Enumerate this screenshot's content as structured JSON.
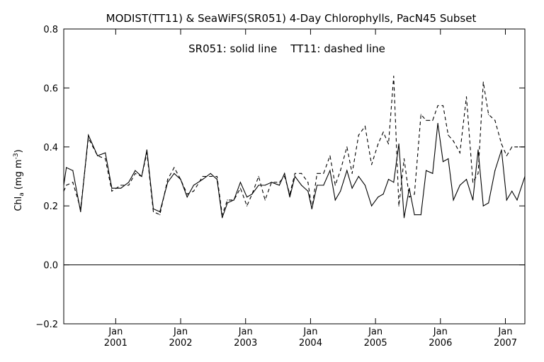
{
  "chart_data": {
    "type": "line",
    "title": "MODIST(TT11) & SeaWiFS(SR051) 4-Day Chlorophylls, PacN45 Subset",
    "annotation": "SR051: solid line    TT11: dashed line",
    "ylabel": "Chl",
    "ylabel_sub": "a",
    "ylabel_units": "(mg m",
    "ylabel_sup": "-3",
    "ylabel_close": ")",
    "ylim": [
      -0.2,
      0.8
    ],
    "xlim": [
      2000.2,
      2007.3
    ],
    "yticks": [
      -0.2,
      0.0,
      0.2,
      0.4,
      0.6,
      0.8
    ],
    "ytick_labels": [
      "−0.2",
      "0.0",
      "0.2",
      "0.4",
      "0.6",
      "0.8"
    ],
    "xticks": [
      2001.0,
      2002.0,
      2003.0,
      2004.0,
      2005.0,
      2006.0,
      2007.0
    ],
    "xtick_month_labels": [
      "Jan",
      "Jan",
      "Jan",
      "Jan",
      "Jan",
      "Jan",
      "Jan"
    ],
    "xtick_year_labels": [
      "2001",
      "2002",
      "2003",
      "2004",
      "2005",
      "2006",
      "2007"
    ],
    "grid": false,
    "reference_line": 0.0,
    "series": [
      {
        "name": "SR051",
        "style": "solid",
        "color": "#000000",
        "x": [
          2000.2,
          2000.24,
          2000.34,
          2000.46,
          2000.58,
          2000.72,
          2000.84,
          2000.94,
          2001.08,
          2001.2,
          2001.3,
          2001.4,
          2001.48,
          2001.58,
          2001.68,
          2001.8,
          2001.9,
          2002.0,
          2002.1,
          2002.2,
          2002.34,
          2002.46,
          2002.56,
          2002.64,
          2002.72,
          2002.82,
          2002.92,
          2003.02,
          2003.1,
          2003.2,
          2003.3,
          2003.4,
          2003.52,
          2003.6,
          2003.68,
          2003.76,
          2003.86,
          2003.96,
          2004.02,
          2004.1,
          2004.2,
          2004.3,
          2004.38,
          2004.46,
          2004.56,
          2004.64,
          2004.74,
          2004.84,
          2004.94,
          2005.04,
          2005.12,
          2005.2,
          2005.28,
          2005.36,
          2005.44,
          2005.52,
          2005.6,
          2005.7,
          2005.78,
          2005.88,
          2005.96,
          2006.04,
          2006.12,
          2006.2,
          2006.3,
          2006.4,
          2006.5,
          2006.58,
          2006.66,
          2006.74,
          2006.84,
          2006.94,
          2007.02,
          2007.1,
          2007.18,
          2007.3
        ],
        "y": [
          0.27,
          0.33,
          0.32,
          0.18,
          0.44,
          0.37,
          0.38,
          0.26,
          0.26,
          0.28,
          0.32,
          0.3,
          0.39,
          0.19,
          0.18,
          0.28,
          0.31,
          0.29,
          0.23,
          0.27,
          0.29,
          0.31,
          0.29,
          0.16,
          0.21,
          0.22,
          0.28,
          0.23,
          0.24,
          0.27,
          0.27,
          0.28,
          0.27,
          0.31,
          0.23,
          0.3,
          0.27,
          0.25,
          0.19,
          0.27,
          0.27,
          0.32,
          0.22,
          0.25,
          0.32,
          0.26,
          0.3,
          0.27,
          0.2,
          0.23,
          0.24,
          0.29,
          0.28,
          0.41,
          0.16,
          0.26,
          0.17,
          0.17,
          0.32,
          0.31,
          0.48,
          0.35,
          0.36,
          0.22,
          0.27,
          0.29,
          0.22,
          0.39,
          0.2,
          0.21,
          0.32,
          0.39,
          0.22,
          0.25,
          0.22,
          0.3
        ]
      },
      {
        "name": "TT11",
        "style": "dashed",
        "color": "#000000",
        "x": [
          2000.2,
          2000.24,
          2000.34,
          2000.46,
          2000.58,
          2000.72,
          2000.84,
          2000.94,
          2001.08,
          2001.2,
          2001.3,
          2001.4,
          2001.48,
          2001.58,
          2001.68,
          2001.8,
          2001.9,
          2002.0,
          2002.1,
          2002.2,
          2002.34,
          2002.46,
          2002.56,
          2002.64,
          2002.72,
          2002.82,
          2002.92,
          2003.02,
          2003.1,
          2003.2,
          2003.3,
          2003.4,
          2003.52,
          2003.6,
          2003.68,
          2003.76,
          2003.86,
          2003.96,
          2004.02,
          2004.1,
          2004.2,
          2004.3,
          2004.38,
          2004.46,
          2004.56,
          2004.64,
          2004.74,
          2004.84,
          2004.94,
          2005.04,
          2005.12,
          2005.2,
          2005.28,
          2005.36,
          2005.44,
          2005.52,
          2005.6,
          2005.7,
          2005.78,
          2005.88,
          2005.96,
          2006.04,
          2006.12,
          2006.2,
          2006.3,
          2006.4,
          2006.5,
          2006.58,
          2006.66,
          2006.74,
          2006.84,
          2006.94,
          2007.02,
          2007.1,
          2007.18,
          2007.3
        ],
        "y": [
          0.25,
          0.27,
          0.28,
          0.19,
          0.43,
          0.37,
          0.36,
          0.25,
          0.27,
          0.27,
          0.31,
          0.3,
          0.38,
          0.18,
          0.17,
          0.29,
          0.33,
          0.29,
          0.24,
          0.25,
          0.3,
          0.3,
          0.3,
          0.17,
          0.22,
          0.22,
          0.26,
          0.2,
          0.24,
          0.3,
          0.22,
          0.28,
          0.28,
          0.3,
          0.24,
          0.31,
          0.31,
          0.28,
          0.19,
          0.31,
          0.31,
          0.37,
          0.27,
          0.32,
          0.4,
          0.31,
          0.44,
          0.47,
          0.34,
          0.41,
          0.45,
          0.41,
          0.64,
          0.2,
          0.36,
          0.23,
          0.24,
          0.51,
          0.49,
          0.49,
          0.54,
          0.54,
          0.44,
          0.42,
          0.38,
          0.57,
          0.28,
          0.31,
          0.62,
          0.51,
          0.49,
          0.41,
          0.37,
          0.4,
          0.4,
          0.4
        ]
      }
    ]
  }
}
